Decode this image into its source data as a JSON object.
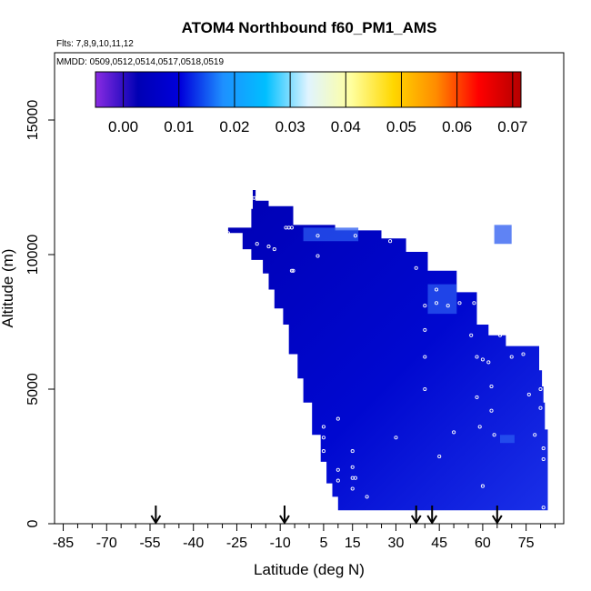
{
  "chart_data": {
    "type": "heatmap",
    "title": "ATOM4 Northbound f60_PM1_AMS",
    "flights_label": "Flts: 7,8,9,10,11,12",
    "dates_label": "MMDD: 0509,0512,0514,0517,0518,0519",
    "xlabel": "Latitude (deg N)",
    "ylabel": "Altitude (m)",
    "xlim": [
      -88,
      88
    ],
    "ylim": [
      0,
      17500
    ],
    "x_ticks": [
      -85,
      -70,
      -55,
      -40,
      -25,
      -10,
      5,
      15,
      30,
      45,
      60,
      75
    ],
    "x_tick_labels": [
      "-85",
      "-70",
      "-55",
      "-40",
      "-25",
      "-10",
      "5",
      "15",
      "30",
      "45",
      "60",
      "75"
    ],
    "x_minor_step": 5,
    "y_ticks": [
      0,
      5000,
      10000,
      15000
    ],
    "y_tick_labels": [
      "0",
      "5000",
      "10000",
      "15000"
    ],
    "colorbar": {
      "range": [
        -0.005,
        0.0715
      ],
      "ticks": [
        0,
        0.01,
        0.02,
        0.03,
        0.04,
        0.05,
        0.06,
        0.07
      ],
      "tick_labels": [
        "0.00",
        "0.01",
        "0.02",
        "0.03",
        "0.04",
        "0.05",
        "0.06",
        "0.07"
      ],
      "colors": [
        "#8a2be2",
        "#0000b4",
        "#0000dc",
        "#1e90ff",
        "#00bfff",
        "#e0f4ff",
        "#ffffa0",
        "#ffd700",
        "#ff8c00",
        "#ff0000",
        "#b40000"
      ]
    },
    "field_colors": {
      "low": "#0000b4",
      "mid": "#0008d0",
      "high": "#1a30e8",
      "highlight": "#2a5af0"
    },
    "coverage_outline_lat_alt": [
      [
        -19.5,
        12400
      ],
      [
        -18.5,
        12400
      ],
      [
        -18.5,
        12000
      ],
      [
        -14,
        12000
      ],
      [
        -14,
        11800
      ],
      [
        -5.5,
        11800
      ],
      [
        -5.5,
        11100
      ],
      [
        9,
        11100
      ],
      [
        9,
        10900
      ],
      [
        25,
        10900
      ],
      [
        25,
        10600
      ],
      [
        33.5,
        10600
      ],
      [
        33.5,
        10100
      ],
      [
        41,
        10100
      ],
      [
        41,
        9400
      ],
      [
        51,
        9400
      ],
      [
        51,
        8600
      ],
      [
        58,
        8600
      ],
      [
        58,
        7400
      ],
      [
        62,
        7400
      ],
      [
        62,
        7000
      ],
      [
        68,
        7000
      ],
      [
        68,
        6600
      ],
      [
        79.5,
        6600
      ],
      [
        79.5,
        5700
      ],
      [
        80.5,
        5700
      ],
      [
        80.5,
        5100
      ],
      [
        81,
        5100
      ],
      [
        81,
        4500
      ],
      [
        81.5,
        4500
      ],
      [
        81.5,
        3500
      ],
      [
        82.5,
        3500
      ],
      [
        82.5,
        500
      ],
      [
        10,
        500
      ],
      [
        10,
        1000
      ],
      [
        8,
        1000
      ],
      [
        8,
        1500
      ],
      [
        6,
        1500
      ],
      [
        6,
        2300
      ],
      [
        4,
        2300
      ],
      [
        4,
        3300
      ],
      [
        1,
        3300
      ],
      [
        1,
        4500
      ],
      [
        -2,
        4500
      ],
      [
        -2,
        5400
      ],
      [
        -4,
        5400
      ],
      [
        -4,
        6300
      ],
      [
        -7,
        6300
      ],
      [
        -7,
        7400
      ],
      [
        -9,
        7400
      ],
      [
        -9,
        8000
      ],
      [
        -12,
        8000
      ],
      [
        -12,
        8700
      ],
      [
        -14,
        8700
      ],
      [
        -14,
        9300
      ],
      [
        -16,
        9300
      ],
      [
        -16,
        9800
      ],
      [
        -20,
        9800
      ],
      [
        -20,
        10200
      ],
      [
        -23,
        10200
      ],
      [
        -23,
        10800
      ],
      [
        -28,
        10800
      ],
      [
        -28,
        11000
      ],
      [
        -20,
        11000
      ],
      [
        -20,
        11700
      ],
      [
        -19.5,
        11700
      ]
    ],
    "highlight_patches_lat_alt": [
      [
        [
          -2,
          11000
        ],
        [
          17,
          11000
        ],
        [
          17,
          10500
        ],
        [
          -2,
          10500
        ]
      ],
      [
        [
          41,
          8900
        ],
        [
          51,
          8900
        ],
        [
          51,
          7800
        ],
        [
          41,
          7800
        ]
      ],
      [
        [
          66,
          3300
        ],
        [
          71,
          3300
        ],
        [
          71,
          3000
        ],
        [
          66,
          3000
        ]
      ],
      [
        [
          64,
          11100
        ],
        [
          70,
          11100
        ],
        [
          70,
          10400
        ],
        [
          64,
          10400
        ]
      ]
    ],
    "flight_points_lat_alt": [
      [
        -28,
        10800
      ],
      [
        -22,
        11200
      ],
      [
        -19,
        12100
      ],
      [
        -18,
        10400
      ],
      [
        -14,
        10300
      ],
      [
        -12,
        10200
      ],
      [
        -8,
        11000
      ],
      [
        -7,
        11000
      ],
      [
        -6,
        11000
      ],
      [
        -6,
        9400
      ],
      [
        -5.5,
        9400
      ],
      [
        3,
        10700
      ],
      [
        3,
        9950
      ],
      [
        16,
        10700
      ],
      [
        28,
        10500
      ],
      [
        37,
        9500
      ],
      [
        40,
        8100
      ],
      [
        40,
        7200
      ],
      [
        40,
        6200
      ],
      [
        40,
        5000
      ],
      [
        44,
        8700
      ],
      [
        44,
        8200
      ],
      [
        48,
        8100
      ],
      [
        52,
        8200
      ],
      [
        56,
        7000
      ],
      [
        57,
        8200
      ],
      [
        58,
        6200
      ],
      [
        58,
        4700
      ],
      [
        59,
        3600
      ],
      [
        60,
        6100
      ],
      [
        61,
        8000
      ],
      [
        62,
        6000
      ],
      [
        63,
        5100
      ],
      [
        63,
        4200
      ],
      [
        64,
        3300
      ],
      [
        65,
        8300
      ],
      [
        66,
        7000
      ],
      [
        67,
        8200
      ],
      [
        68,
        7400
      ],
      [
        70,
        6200
      ],
      [
        74,
        6300
      ],
      [
        76,
        4800
      ],
      [
        78,
        3300
      ],
      [
        80,
        5000
      ],
      [
        80,
        4300
      ],
      [
        81,
        600
      ],
      [
        81,
        2800
      ],
      [
        81,
        2400
      ],
      [
        5,
        3600
      ],
      [
        5,
        3200
      ],
      [
        5,
        2700
      ],
      [
        5,
        1900
      ],
      [
        5,
        1500
      ],
      [
        5,
        1200
      ],
      [
        10,
        2000
      ],
      [
        10,
        1600
      ],
      [
        10,
        3900
      ],
      [
        15,
        2700
      ],
      [
        15,
        2100
      ],
      [
        15,
        1700
      ],
      [
        15,
        1300
      ],
      [
        16,
        1700
      ],
      [
        30,
        3200
      ],
      [
        45,
        2500
      ],
      [
        50,
        3400
      ],
      [
        60,
        1400
      ],
      [
        20,
        1000
      ]
    ],
    "arrow_latitudes": [
      -53,
      -8.5,
      37,
      42.5,
      65
    ]
  }
}
